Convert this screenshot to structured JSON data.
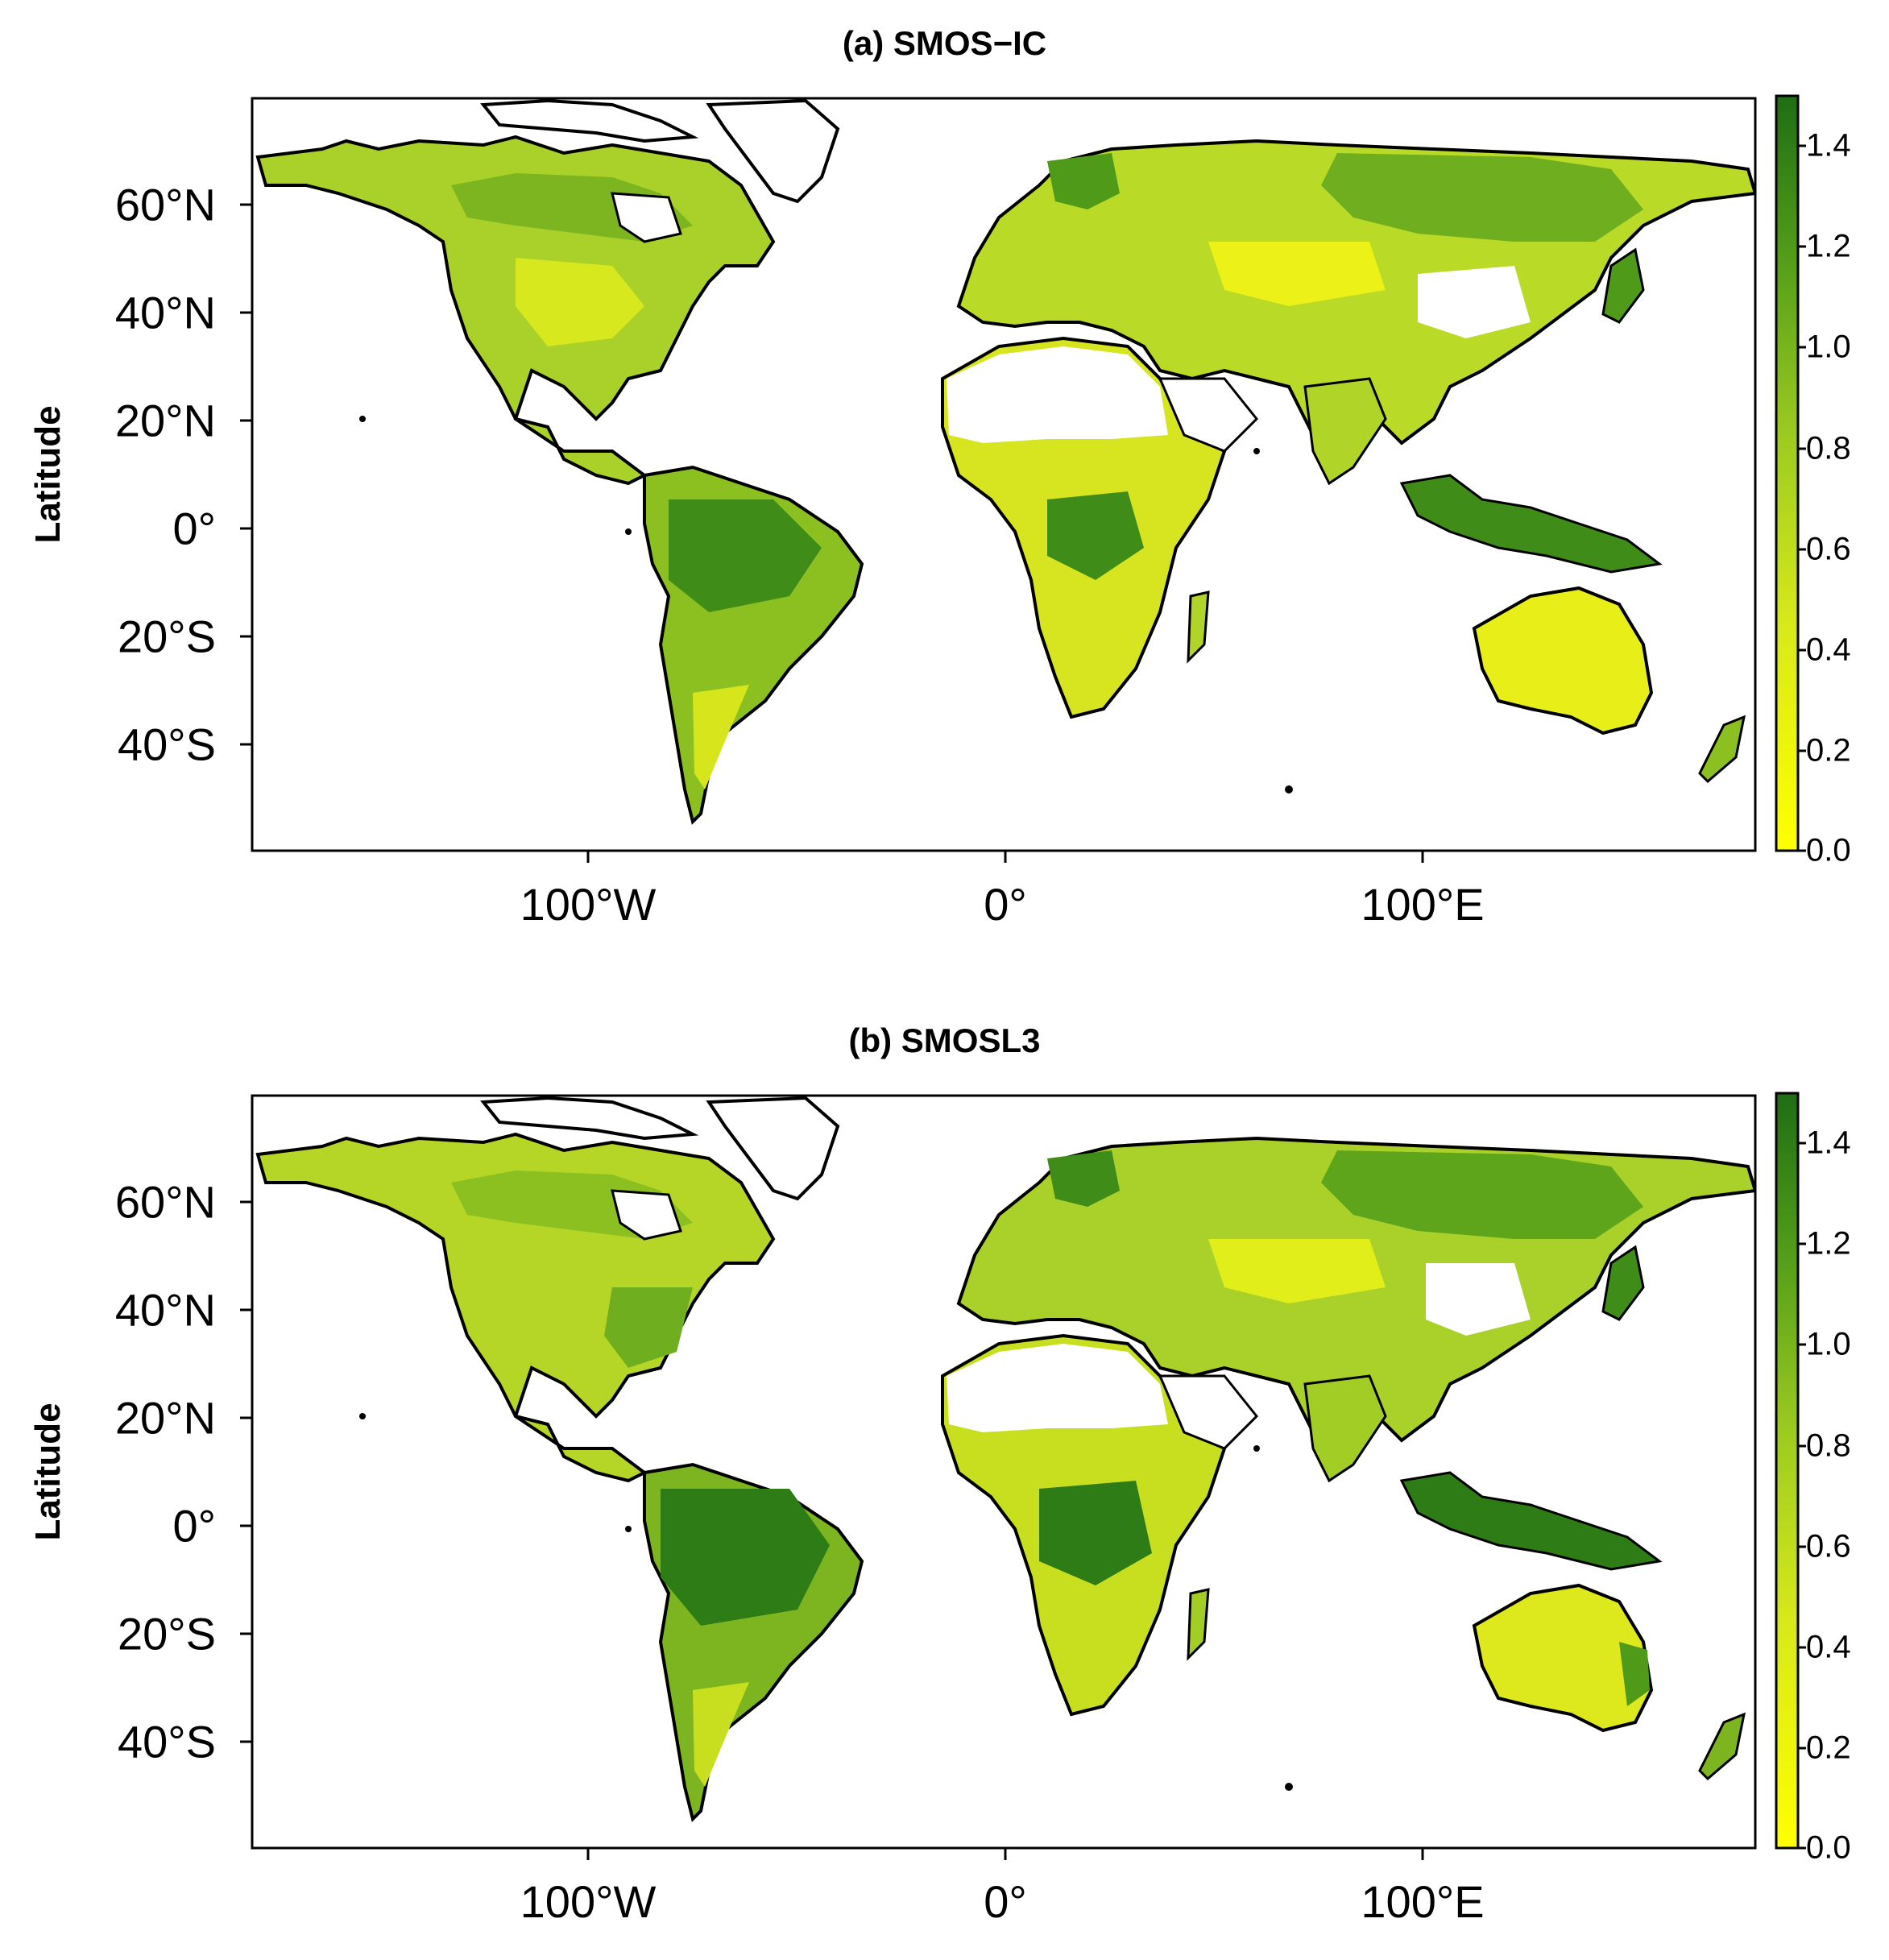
{
  "panels": [
    {
      "title": "(a) SMOS−IC",
      "ylabel": "Latitude",
      "lat_ticks": [
        "60°N",
        "40°N",
        "20°N",
        "0°",
        "20°S",
        "40°S"
      ],
      "lon_ticks": [
        "100°W",
        "0°",
        "100°E"
      ],
      "colorbar": {
        "ticks": [
          "1.4",
          "1.2",
          "1.0",
          "0.8",
          "0.6",
          "0.4",
          "0.2",
          "0.0"
        ]
      }
    },
    {
      "title": "(b) SMOSL3",
      "ylabel": "Latitude",
      "lat_ticks": [
        "60°N",
        "40°N",
        "20°N",
        "0°",
        "20°S",
        "40°S"
      ],
      "lon_ticks": [
        "100°W",
        "0°",
        "100°E"
      ],
      "colorbar": {
        "ticks": [
          "1.4",
          "1.2",
          "1.0",
          "0.8",
          "0.6",
          "0.4",
          "0.2",
          "0.0"
        ]
      }
    }
  ],
  "colors": {
    "low": "#ffff00",
    "mid": "#9ccb1f",
    "high": "#1e6e14",
    "coast": "#000000"
  }
}
